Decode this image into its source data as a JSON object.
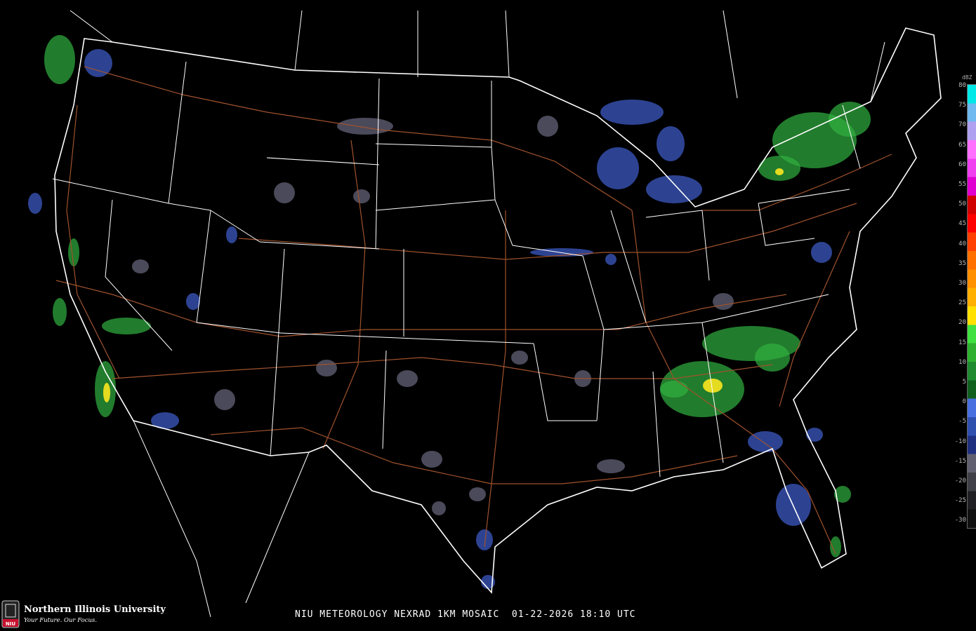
{
  "caption": "NIU METEOROLOGY NEXRAD 1KM MOSAIC  01-22-2026 18:10 UTC",
  "branding": {
    "name": "Northern Illinois University",
    "tagline": "Your Future. Our Focus.",
    "logo_text": "NIU"
  },
  "legend": {
    "unit": "dBZ",
    "ticks": [
      "80",
      "75",
      "70",
      "65",
      "60",
      "55",
      "50",
      "45",
      "40",
      "35",
      "30",
      "25",
      "20",
      "15",
      "10",
      "5",
      "0",
      "-5",
      "-10",
      "-15",
      "-20",
      "-25",
      "-30"
    ],
    "colors": [
      "#00e8e8",
      "#70b8f0",
      "#b0a0f0",
      "#ff70ff",
      "#f040f0",
      "#e000d0",
      "#d00000",
      "#ff0000",
      "#ff4000",
      "#ff7000",
      "#ff9000",
      "#ffb000",
      "#ffe000",
      "#40e040",
      "#30b030",
      "#208a30",
      "#106020",
      "#4870e0",
      "#3050b0",
      "#203080",
      "#606070",
      "#404048",
      "#202024",
      "#101010"
    ]
  },
  "map": {
    "border_color": "#ffffff",
    "highway_color": "#a0522d",
    "radar_echoes": [
      {
        "level": "green",
        "color": "#30b040"
      },
      {
        "level": "blue",
        "color": "#4060d0"
      },
      {
        "level": "gray",
        "color": "#6a6a80"
      },
      {
        "level": "yellow",
        "color": "#f0e020"
      }
    ]
  }
}
